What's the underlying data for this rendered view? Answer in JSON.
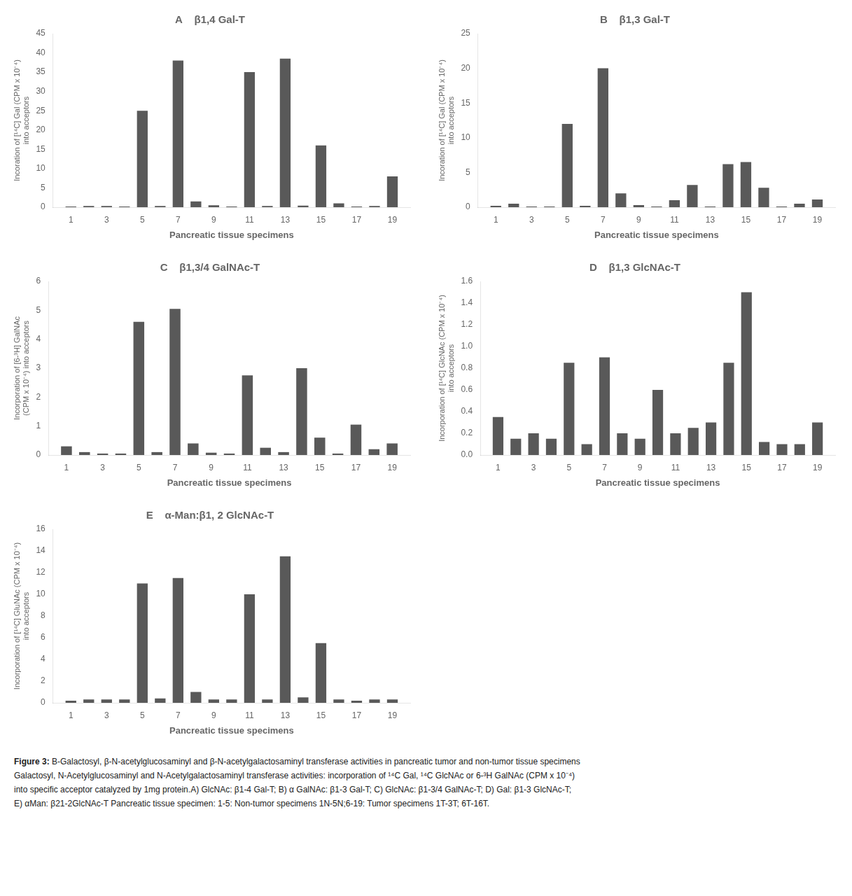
{
  "chart_data": [
    {
      "type": "bar",
      "title": "A    β1,4 Gal-T",
      "x": [
        1,
        2,
        3,
        4,
        5,
        6,
        7,
        8,
        9,
        10,
        11,
        12,
        13,
        14,
        15,
        16,
        17,
        18,
        19
      ],
      "values": [
        0.2,
        0.3,
        0.3,
        0.2,
        25,
        0.3,
        38,
        1.5,
        0.5,
        0.2,
        35,
        0.3,
        38.5,
        0.4,
        16,
        1.0,
        0.2,
        0.3,
        8
      ],
      "color": "#595959",
      "xlabel": "Pancreatic tissue specimens",
      "ylabel": "Incoration of [¹⁴C] Gal (CPM x 10⁻⁴)\ninto acceptors",
      "xlim": [
        0,
        20
      ],
      "xticks": [
        1,
        3,
        5,
        7,
        9,
        11,
        13,
        15,
        17,
        19
      ],
      "ylim": [
        0,
        45
      ],
      "yticks": [
        0,
        5,
        10,
        15,
        20,
        25,
        30,
        35,
        40,
        45
      ],
      "grid": false
    },
    {
      "type": "bar",
      "title": "B    β1,3 Gal-T",
      "x": [
        1,
        2,
        3,
        4,
        5,
        6,
        7,
        8,
        9,
        10,
        11,
        12,
        13,
        14,
        15,
        16,
        17,
        18,
        19
      ],
      "values": [
        0.2,
        0.5,
        0.1,
        0.1,
        12,
        0.2,
        20,
        2.0,
        0.3,
        0.1,
        1.0,
        3.2,
        0.1,
        6.2,
        6.5,
        2.8,
        0.1,
        0.5,
        1.1
      ],
      "color": "#595959",
      "xlabel": "Pancreatic tissue specimens",
      "ylabel": "Incoration of [¹⁴C] Gal (CPM x 10⁻⁴)\ninto acceptors",
      "xlim": [
        0,
        20
      ],
      "xticks": [
        1,
        3,
        5,
        7,
        9,
        11,
        13,
        15,
        17,
        19
      ],
      "ylim": [
        0,
        25
      ],
      "yticks": [
        0,
        5,
        10,
        15,
        20,
        25
      ],
      "grid": false
    },
    {
      "type": "bar",
      "title": "C    β1,3/4 GalNAc-T",
      "x": [
        1,
        2,
        3,
        4,
        5,
        6,
        7,
        8,
        9,
        10,
        11,
        12,
        13,
        14,
        15,
        16,
        17,
        18,
        19
      ],
      "values": [
        0.3,
        0.1,
        0.05,
        0.05,
        4.6,
        0.1,
        5.05,
        0.4,
        0.08,
        0.05,
        2.75,
        0.25,
        0.1,
        3.0,
        0.6,
        0.05,
        1.05,
        0.2,
        0.4
      ],
      "color": "#595959",
      "xlabel": "Pancreatic tissue specimens",
      "ylabel": "Incorporation of [6-³H] GalNAc\n(CPM x 10⁻⁴) into acceptors",
      "xlim": [
        0,
        20
      ],
      "xticks": [
        1,
        3,
        5,
        7,
        9,
        11,
        13,
        15,
        17,
        19
      ],
      "ylim": [
        0,
        6
      ],
      "yticks": [
        0,
        1,
        2,
        3,
        4,
        5,
        6
      ],
      "grid": false
    },
    {
      "type": "bar",
      "title": "D    β1,3 GlcNAc-T",
      "x": [
        1,
        2,
        3,
        4,
        5,
        6,
        7,
        8,
        9,
        10,
        11,
        12,
        13,
        14,
        15,
        16,
        17,
        18,
        19
      ],
      "values": [
        0.35,
        0.15,
        0.2,
        0.15,
        0.85,
        0.1,
        0.9,
        0.2,
        0.15,
        0.6,
        0.2,
        0.25,
        0.3,
        0.85,
        1.5,
        0.12,
        0.1,
        0.1,
        0.3
      ],
      "color": "#595959",
      "xlabel": "Pancreatic tissue specimens",
      "ylabel": "Incorporation of [¹⁴C] GlcNAc (CPM x 10⁻⁴)\ninto acceptors",
      "xlim": [
        0,
        20
      ],
      "xticks": [
        1,
        3,
        5,
        7,
        9,
        11,
        13,
        15,
        17,
        19
      ],
      "ylim": [
        0,
        1.6
      ],
      "yticks": [
        {
          "value": 0,
          "label": "0.0"
        },
        0.2,
        0.4,
        0.6,
        0.8,
        {
          "value": 1.0,
          "label": "1.0"
        },
        1.2,
        1.4,
        1.6
      ],
      "grid": false
    },
    {
      "type": "bar",
      "title": "E    α-Man:β1, 2 GlcNAc-T",
      "x": [
        1,
        2,
        3,
        4,
        5,
        6,
        7,
        8,
        9,
        10,
        11,
        12,
        13,
        14,
        15,
        16,
        17,
        18,
        19
      ],
      "values": [
        0.2,
        0.3,
        0.3,
        0.3,
        11,
        0.4,
        11.5,
        1.0,
        0.3,
        0.3,
        10,
        0.3,
        13.5,
        0.5,
        5.5,
        0.3,
        0.2,
        0.3,
        0.3
      ],
      "color": "#595959",
      "xlabel": "Pancreatic tissue specimens",
      "ylabel": "Incorporation of [¹⁴C] GluNAc (CPM x 10⁻⁴)\ninto acceptors",
      "xlim": [
        0,
        20
      ],
      "xticks": [
        1,
        3,
        5,
        7,
        9,
        11,
        13,
        15,
        17,
        19
      ],
      "ylim": [
        0,
        16
      ],
      "yticks": [
        0,
        2,
        4,
        6,
        8,
        10,
        12,
        14,
        16
      ],
      "grid": false
    }
  ],
  "caption": {
    "bold": "Figure 3:",
    "lines": [
      " B-Galactosyl, β-N-acetylglucosaminyl and β-N-acetylgalactosaminyl transferase activities in pancreatic tumor and non-tumor tissue specimens",
      "Galactosyl, N-Acetylglucosaminyl and N-Acetylgalactosaminyl transferase activities: incorporation of ¹⁴C Gal, ¹⁴C GlcNAc or 6-³H GalNAc (CPM x 10⁻⁴)",
      "into specific acceptor catalyzed by 1mg protein.A) GlcNAc: β1-4 Gal-T; B) α GalNAc: β1-3 Gal-T; C) GlcNAc: β1-3/4 GalNAc-T; D) Gal: β1-3 GlcNAc-T;",
      "E) αMan: β21-2GlcNAc-T Pancreatic tissue specimen: 1-5: Non-tumor specimens 1N-5N;6-19: Tumor specimens 1T-3T; 6T-16T."
    ]
  }
}
